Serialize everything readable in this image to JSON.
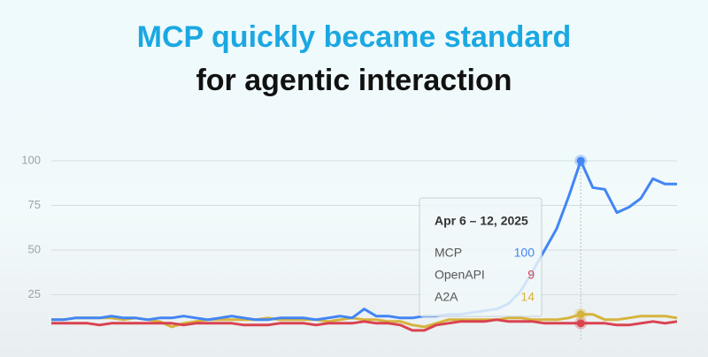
{
  "chart_data": {
    "type": "line",
    "title": "MCP quickly became standard",
    "subtitle": "for agentic interaction",
    "categories": [
      null,
      null,
      null,
      null,
      null,
      null,
      null,
      null,
      null,
      null,
      null,
      null,
      null,
      null,
      null,
      null,
      null,
      null,
      null,
      null,
      null,
      null,
      null,
      null,
      null,
      null,
      null,
      null,
      null,
      null,
      null,
      null,
      null,
      null,
      null,
      null,
      null,
      null,
      null,
      null,
      null,
      null,
      null,
      null,
      "Apr 6 – 12, 2025",
      null,
      null,
      null,
      null,
      null,
      null,
      null,
      null
    ],
    "series": [
      {
        "name": "MCP",
        "color": "#4285f4",
        "values": [
          11,
          11,
          12,
          12,
          12,
          13,
          12,
          12,
          11,
          12,
          12,
          13,
          12,
          11,
          12,
          13,
          12,
          11,
          11,
          12,
          12,
          12,
          11,
          12,
          13,
          12,
          17,
          13,
          13,
          12,
          12,
          13,
          13,
          14,
          14,
          15,
          16,
          17,
          20,
          27,
          38,
          50,
          62,
          80,
          100,
          85,
          84,
          71,
          74,
          79,
          90,
          87,
          87
        ]
      },
      {
        "name": "OpenAPI",
        "color": "#d9434f",
        "values": [
          9,
          9,
          9,
          9,
          8,
          9,
          9,
          9,
          9,
          9,
          9,
          8,
          9,
          9,
          9,
          9,
          8,
          8,
          8,
          9,
          9,
          9,
          8,
          9,
          9,
          9,
          10,
          9,
          9,
          8,
          5,
          5,
          8,
          9,
          10,
          10,
          10,
          11,
          10,
          10,
          10,
          9,
          9,
          9,
          9,
          9,
          9,
          8,
          8,
          9,
          10,
          9,
          10
        ]
      },
      {
        "name": "A2A",
        "color": "#d6b33c",
        "values": [
          11,
          11,
          12,
          12,
          12,
          12,
          11,
          12,
          11,
          10,
          7,
          9,
          10,
          11,
          11,
          11,
          11,
          11,
          12,
          11,
          11,
          11,
          11,
          10,
          11,
          12,
          11,
          11,
          10,
          10,
          8,
          7,
          9,
          11,
          11,
          11,
          11,
          11,
          12,
          12,
          11,
          11,
          11,
          12,
          14,
          14,
          11,
          11,
          12,
          13,
          13,
          13,
          12
        ]
      }
    ],
    "ylim": [
      0,
      100
    ],
    "yticks": [
      25,
      50,
      75,
      100
    ],
    "grid": true
  }
}
